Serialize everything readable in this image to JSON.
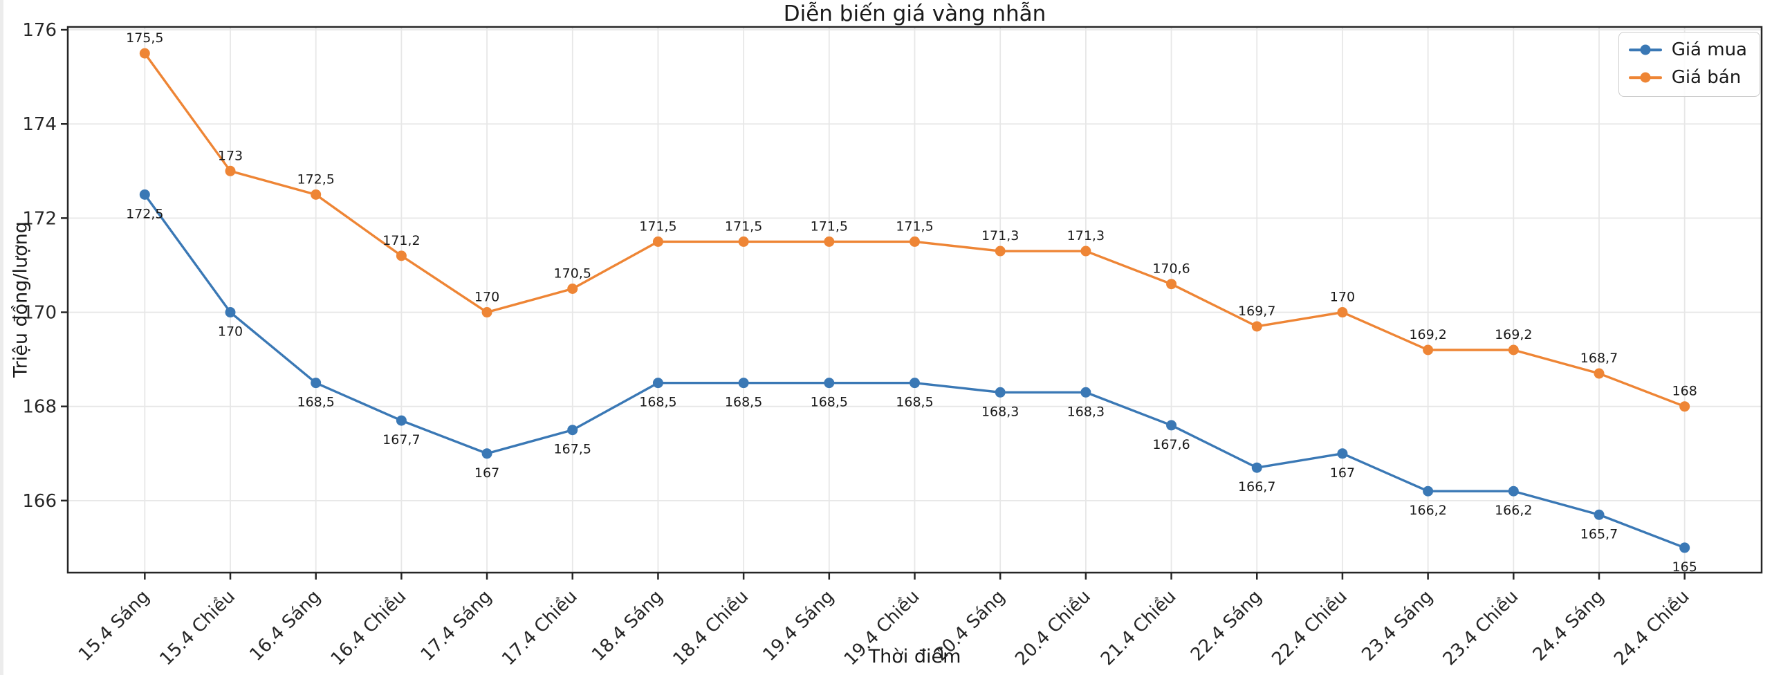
{
  "chart_data": {
    "type": "line",
    "title": "Diễn biến giá vàng nhẫn",
    "xlabel": "Thời điểm",
    "ylabel": "Triệu đồng/lượng",
    "categories": [
      "15.4 Sáng",
      "15.4 Chiều",
      "16.4 Sáng",
      "16.4 Chiều",
      "17.4 Sáng",
      "17.4 Chiều",
      "18.4 Sáng",
      "18.4 Chiều",
      "19.4 Sáng",
      "19.4 Chiều",
      "20.4 Sáng",
      "20.4 Chiều",
      "21.4 Chiều",
      "22.4 Sáng",
      "22.4 Chiều",
      "23.4 Sáng",
      "23.4 Chiều",
      "24.4 Sáng",
      "24.4 Chiều"
    ],
    "series": [
      {
        "name": "Giá mua",
        "color": "#3a78b5",
        "values": [
          172.5,
          170,
          168.5,
          167.7,
          167,
          167.5,
          168.5,
          168.5,
          168.5,
          168.5,
          168.3,
          168.3,
          167.6,
          166.7,
          167,
          166.2,
          166.2,
          165.7,
          165
        ],
        "point_labels": [
          "172,5",
          "170",
          "168,5",
          "167,7",
          "167",
          "167,5",
          "168,5",
          "168,5",
          "168,5",
          "168,5",
          "168,3",
          "168,3",
          "167,6",
          "166,7",
          "167",
          "166,2",
          "166,2",
          "165,7",
          "165"
        ],
        "label_position": "below"
      },
      {
        "name": "Giá bán",
        "color": "#ee8535",
        "values": [
          175.5,
          173,
          172.5,
          171.2,
          170,
          170.5,
          171.5,
          171.5,
          171.5,
          171.5,
          171.3,
          171.3,
          170.6,
          169.7,
          170,
          169.2,
          169.2,
          168.7,
          168
        ],
        "point_labels": [
          "175,5",
          "173",
          "172,5",
          "171,2",
          "170",
          "170,5",
          "171,5",
          "171,5",
          "171,5",
          "171,5",
          "171,3",
          "171,3",
          "170,6",
          "169,7",
          "170",
          "169,2",
          "169,2",
          "168,7",
          "168"
        ],
        "label_position": "above"
      }
    ],
    "ylim": [
      164.47,
      176.06
    ],
    "yticks": [
      166,
      168,
      170,
      172,
      174,
      176
    ],
    "grid": true,
    "legend_position": "top-right",
    "legend": [
      "Giá mua",
      "Giá bán"
    ]
  },
  "colors": {
    "background": "#ffffff",
    "grid": "#e7e7e7",
    "spine": "#262626",
    "tick_text": "#262626",
    "data_label_text": "#1a1a1a"
  }
}
